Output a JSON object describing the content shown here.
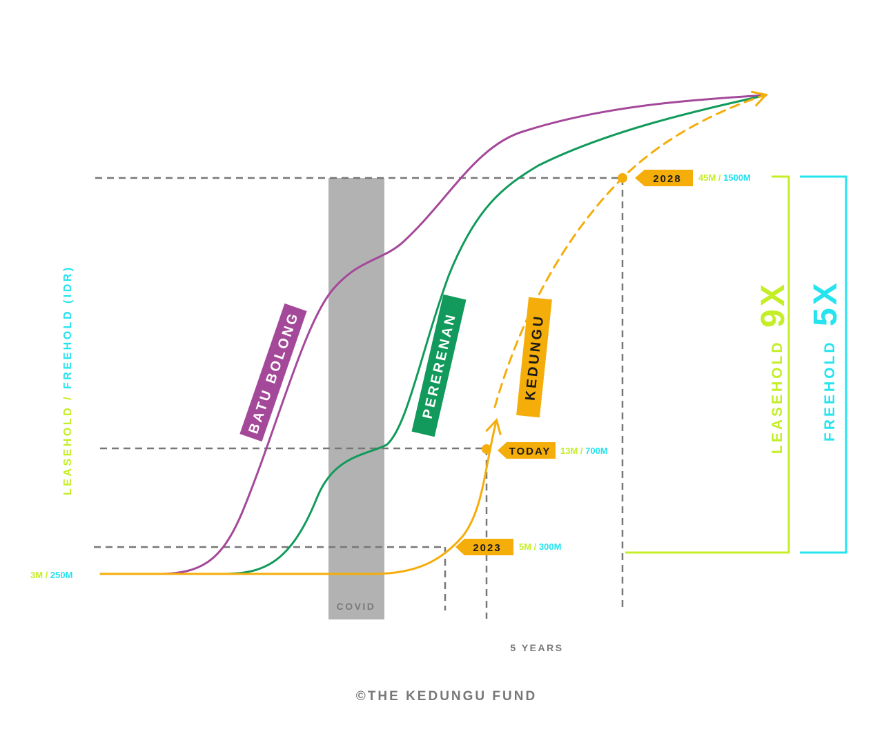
{
  "colors": {
    "batu_bolong": "#a4489a",
    "pererenan": "#119a5b",
    "kedungu": "#f5ad0a",
    "leasehold": "#c4ee26",
    "freehold": "#25e3ef",
    "guides": "#777777",
    "covid_band": "#b2b2b2",
    "tag_text": "#1a1a1a"
  },
  "chart_data": {
    "type": "line",
    "title": "",
    "ylabel": {
      "leasehold": "LEASEHOLD",
      "sep": " / ",
      "freehold": "FREEHOLD (IDR)"
    },
    "series": [
      {
        "name": "BATU BOLONG"
      },
      {
        "name": "PERERENAN"
      },
      {
        "name": "KEDUNGU"
      }
    ],
    "price_levels": [
      {
        "tag": "2023",
        "leasehold": "5M",
        "sep": " / ",
        "freehold": "300M"
      },
      {
        "tag": "TODAY",
        "leasehold": "13M",
        "sep": " / ",
        "freehold": "700M"
      },
      {
        "tag": "2028",
        "leasehold": "45M",
        "sep": " / ",
        "freehold": "1500M"
      }
    ],
    "baseline": {
      "leasehold": "3M",
      "sep": " / ",
      "freehold": "250M"
    },
    "covid_label": "COVID",
    "period_label": "5 YEARS",
    "multipliers": {
      "leasehold": {
        "label": "LEASEHOLD",
        "value": "9X"
      },
      "freehold": {
        "label": "FREEHOLD",
        "value": "5X"
      }
    }
  },
  "footer": {
    "copyright": "©THE KEDUNGU FUND"
  }
}
